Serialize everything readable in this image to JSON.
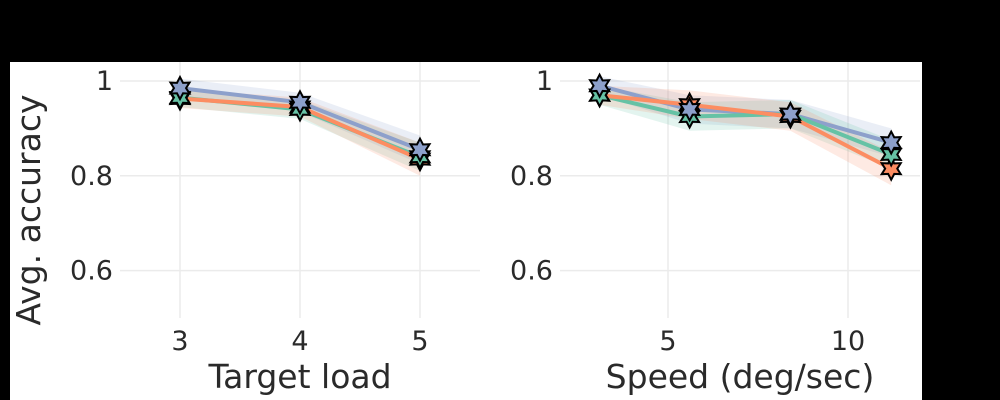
{
  "chart_data": [
    {
      "type": "line",
      "xlabel": "Target load",
      "ylabel": "Avg. accuracy",
      "xlim": [
        2.5,
        5.5
      ],
      "ylim": [
        0.5,
        1.04
      ],
      "xticks": [
        3,
        4,
        5
      ],
      "yticks": [
        0.6,
        0.8,
        1
      ],
      "ytick_labels": [
        "0.6",
        "0.8",
        "1"
      ],
      "grid": true,
      "x": [
        3,
        4,
        5
      ],
      "series": [
        {
          "color": "#8da0cb",
          "values": [
            0.985,
            0.955,
            0.855
          ],
          "band": [
            0.02,
            0.02,
            0.03
          ]
        },
        {
          "color": "#66c2a5",
          "values": [
            0.965,
            0.94,
            0.84
          ],
          "band": [
            0.02,
            0.02,
            0.03
          ]
        },
        {
          "color": "#fc8d62",
          "values": [
            0.963,
            0.945,
            0.835
          ],
          "band": [
            0.02,
            0.02,
            0.035
          ]
        }
      ]
    },
    {
      "type": "line",
      "xlabel": "Speed (deg/sec)",
      "ylabel": "",
      "xlim": [
        2.0,
        12.0
      ],
      "ylim": [
        0.5,
        1.04
      ],
      "xticks": [
        5,
        10
      ],
      "yticks": [
        0.6,
        0.8,
        1
      ],
      "ytick_labels": [
        "0.6",
        "0.8",
        "1"
      ],
      "grid": true,
      "x": [
        3.1,
        5.6,
        8.4,
        11.2
      ],
      "series": [
        {
          "color": "#8da0cb",
          "values": [
            0.99,
            0.94,
            0.93,
            0.87
          ],
          "band": [
            0.02,
            0.03,
            0.03,
            0.03
          ]
        },
        {
          "color": "#66c2a5",
          "values": [
            0.97,
            0.925,
            0.93,
            0.845
          ],
          "band": [
            0.02,
            0.03,
            0.03,
            0.03
          ]
        },
        {
          "color": "#fc8d62",
          "values": [
            0.97,
            0.95,
            0.925,
            0.815
          ],
          "band": [
            0.02,
            0.03,
            0.03,
            0.035
          ]
        }
      ]
    }
  ]
}
